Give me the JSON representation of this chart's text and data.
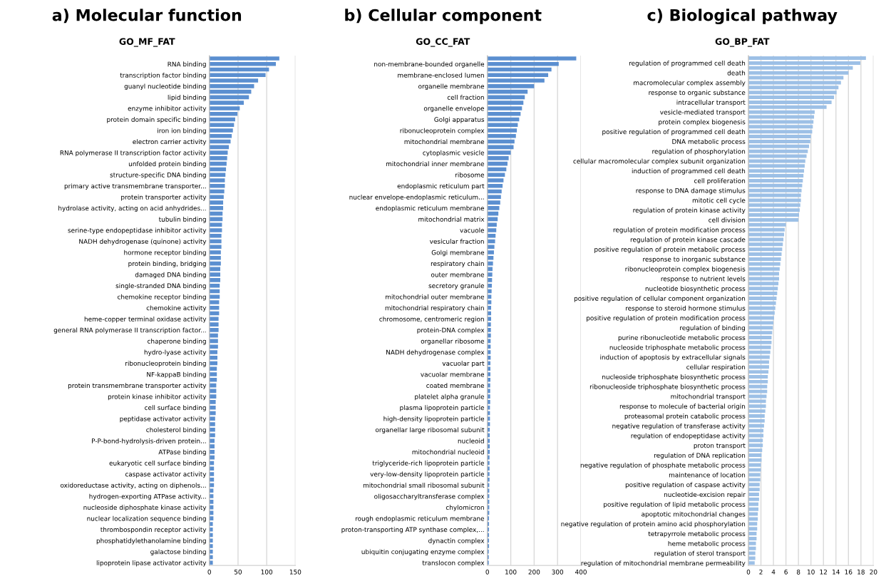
{
  "chart_data": [
    {
      "type": "bar",
      "orientation": "horizontal",
      "title": "a) Molecular function",
      "subtitle": "GO_MF_FAT",
      "color": "#5b8fd0",
      "grid": "x",
      "xlim": [
        0,
        150
      ],
      "xticks": [
        0,
        50,
        100,
        150
      ],
      "categories": [
        null,
        "RNA binding",
        null,
        "transcription factor binding",
        null,
        "guanyl nucleotide binding",
        null,
        "lipid binding",
        null,
        "enzyme inhibitor activity",
        null,
        "protein domain specific binding",
        null,
        "iron ion binding",
        null,
        "electron carrier activity",
        null,
        "RNA polymerase II transcription factor activity",
        null,
        "unfolded protein binding",
        null,
        "structure-specific DNA binding",
        null,
        "primary active transmembrane transporter...",
        null,
        "protein transporter activity",
        null,
        "hydrolase activity, acting on acid anhydrides...",
        null,
        "tubulin binding",
        null,
        "serine-type endopeptidase inhibitor activity",
        null,
        "NADH dehydrogenase (quinone) activity",
        null,
        "hormone receptor binding",
        null,
        "protein binding, bridging",
        null,
        "damaged DNA binding",
        null,
        "single-stranded DNA binding",
        null,
        "chemokine receptor binding",
        null,
        "chemokine activity",
        null,
        "heme-copper terminal oxidase activity",
        null,
        "general RNA polymerase II transcription factor...",
        null,
        "chaperone binding",
        null,
        "hydro-lyase activity",
        null,
        "ribonucleoprotein binding",
        null,
        "NF-kappaB binding",
        null,
        "protein transmembrane transporter activity",
        null,
        "protein kinase inhibitor activity",
        null,
        "cell surface binding",
        null,
        "peptidase activator activity",
        null,
        "cholesterol binding",
        null,
        "P-P-bond-hydrolysis-driven protein...",
        null,
        "ATPase binding",
        null,
        "eukaryotic cell surface binding",
        null,
        "caspase activator activity",
        null,
        "oxidoreductase activity, acting on diphenols...",
        null,
        "hydrogen-exporting ATPase activity...",
        null,
        "nucleoside diphosphate kinase activity",
        null,
        "nuclear localization sequence binding",
        null,
        "thrombospondin receptor activity",
        null,
        "phosphatidylethanolamine binding",
        null,
        "galactose binding",
        null,
        "lipoprotein lipase activator activity"
      ],
      "values": [
        122,
        116,
        104,
        98,
        85,
        78,
        73,
        69,
        60,
        53,
        49,
        45,
        43,
        41,
        39,
        37,
        34,
        32,
        31,
        30,
        29,
        28,
        27,
        27,
        26,
        25,
        24,
        24,
        23,
        23,
        22,
        22,
        21,
        21,
        21,
        20,
        20,
        20,
        19,
        19,
        19,
        18,
        18,
        18,
        17,
        17,
        17,
        16,
        16,
        16,
        15,
        15,
        15,
        14,
        14,
        14,
        13,
        13,
        13,
        12,
        12,
        12,
        11,
        11,
        11,
        10,
        10,
        10,
        10,
        9,
        9,
        9,
        9,
        8,
        8,
        8,
        8,
        8,
        7,
        7,
        7,
        7,
        7,
        7,
        6,
        6,
        6,
        6,
        6,
        6,
        6,
        6
      ]
    },
    {
      "type": "bar",
      "orientation": "horizontal",
      "title": "b) Cellular component",
      "subtitle": "GO_CC_FAT",
      "color": "#5b8fd0",
      "grid": "x",
      "xlim": [
        0,
        400
      ],
      "xticks": [
        0,
        100,
        200,
        300,
        400
      ],
      "categories": [
        null,
        "non-membrane-bounded organelle",
        null,
        "membrane-enclosed lumen",
        null,
        "organelle membrane",
        null,
        "cell fraction",
        null,
        "organelle envelope",
        null,
        "Golgi apparatus",
        null,
        "ribonucleoprotein complex",
        null,
        "mitochondrial membrane",
        null,
        "cytoplasmic vesicle",
        null,
        "mitochondrial inner membrane",
        null,
        "ribosome",
        null,
        "endoplasmic reticulum part",
        null,
        "nuclear envelope-endoplasmic reticulum...",
        null,
        "endoplasmic reticulum membrane",
        null,
        "mitochondrial matrix",
        null,
        "vacuole",
        null,
        "vesicular fraction",
        null,
        "Golgi membrane",
        null,
        "respiratory chain",
        null,
        "outer membrane",
        null,
        "secretory granule",
        null,
        "mitochondrial outer membrane",
        null,
        "mitochondrial respiratory chain",
        null,
        "chromosome, centromeric region",
        null,
        "protein-DNA complex",
        null,
        "organellar ribosome",
        null,
        "NADH dehydrogenase complex",
        null,
        "vacuolar part",
        null,
        "vacuolar membrane",
        null,
        "coated membrane",
        null,
        "platelet alpha granule",
        null,
        "plasma lipoprotein particle",
        null,
        "high-density lipoprotein particle",
        null,
        "organellar large ribosomal subunit",
        null,
        "nucleoid",
        null,
        "mitochondrial nucleoid",
        null,
        "triglyceride-rich lipoprotein particle",
        null,
        "very-low-density lipoprotein particle",
        null,
        "mitochondrial small ribosomal subunit",
        null,
        "oligosaccharyltransferase complex",
        null,
        "chylomicron",
        null,
        "rough endoplasmic reticulum membrane",
        null,
        "proton-transporting ATP synthase complex,...",
        null,
        "dynactin complex",
        null,
        "ubiquitin conjugating enzyme complex",
        null,
        "translocon complex"
      ],
      "values": [
        380,
        305,
        274,
        260,
        244,
        200,
        172,
        160,
        154,
        148,
        142,
        136,
        130,
        126,
        122,
        116,
        112,
        100,
        91,
        86,
        81,
        75,
        69,
        65,
        61,
        58,
        55,
        51,
        47,
        44,
        40,
        38,
        35,
        33,
        30,
        28,
        26,
        24,
        22,
        21,
        20,
        19,
        18,
        17,
        17,
        16,
        16,
        16,
        15,
        15,
        15,
        14,
        14,
        14,
        14,
        13,
        13,
        13,
        13,
        12,
        12,
        12,
        12,
        11,
        11,
        11,
        11,
        10,
        10,
        10,
        10,
        10,
        9,
        9,
        9,
        9,
        9,
        8,
        8,
        8,
        8,
        8,
        8,
        7,
        7,
        7,
        7,
        7,
        7,
        6,
        6,
        6
      ]
    },
    {
      "type": "bar",
      "orientation": "horizontal",
      "title": "c) Biological pathway",
      "subtitle": "GO_BP_FAT",
      "color": "#9dc0e6",
      "grid": "x",
      "xlim": [
        0,
        20
      ],
      "xticks": [
        0,
        2,
        4,
        6,
        8,
        10,
        12,
        14,
        16,
        18,
        20
      ],
      "categories": [
        null,
        "regulation of programmed cell death",
        null,
        "death",
        null,
        "macromolecular complex assembly",
        null,
        "response to organic substance",
        null,
        "intracellular transport",
        null,
        "vesicle-mediated transport",
        null,
        "protein complex biogenesis",
        null,
        "positive regulation of programmed cell death",
        null,
        "DNA metabolic process",
        null,
        "regulation of phosphorylation",
        null,
        "cellular macromolecular complex subunit organization",
        null,
        "induction of programmed cell death",
        null,
        "cell proliferation",
        null,
        "response to DNA damage stimulus",
        null,
        "mitotic cell cycle",
        null,
        "regulation of protein kinase activity",
        null,
        "cell division",
        null,
        "regulation of protein modification process",
        null,
        "regulation of protein kinase cascade",
        null,
        "positive regulation of protein metabolic process",
        null,
        "response to inorganic substance",
        null,
        "ribonucleoprotein complex biogenesis",
        null,
        "response to nutrient levels",
        null,
        "nucleotide biosynthetic process",
        null,
        "positive regulation of cellular component organization",
        null,
        "response to steroid hormone stimulus",
        null,
        "positive regulation of protein modification process",
        null,
        "regulation of binding",
        null,
        "purine ribonucleotide metabolic process",
        null,
        "nucleoside triphosphate metabolic process",
        null,
        "induction of apoptosis by extracellular signals",
        null,
        "cellular respiration",
        null,
        "nucleoside triphosphate biosynthetic process",
        null,
        "ribonucleoside triphosphate biosynthetic process",
        null,
        "mitochondrial transport",
        null,
        "response to molecule of bacterial origin",
        null,
        "proteasomal protein catabolic process",
        null,
        "negative regulation of transferase activity",
        null,
        "regulation of endopeptidase activity",
        null,
        "proton transport",
        null,
        "regulation of DNA replication",
        null,
        "negative regulation of phosphate metabolic process",
        null,
        "maintenance of location",
        null,
        "positive regulation of caspase activity",
        null,
        "nucleotide-excision repair",
        null,
        "positive regulation of lipid metabolic process",
        null,
        "apoptotic mitochondrial changes",
        null,
        "negative regulation of protein amino acid phosphorylation",
        null,
        "tetrapyrrole metabolic process",
        null,
        "heme metabolic process",
        null,
        "regulation of sterol transport",
        null,
        "regulation of mitochondrial membrane permeability"
      ],
      "values": [
        18.8,
        17.9,
        16.7,
        16.0,
        15.2,
        14.8,
        14.4,
        14.1,
        13.7,
        13.3,
        12.5,
        10.6,
        10.5,
        10.4,
        10.3,
        10.2,
        10.0,
        9.9,
        9.7,
        9.5,
        9.3,
        9.1,
        9.0,
        8.9,
        8.8,
        8.7,
        8.6,
        8.5,
        8.4,
        8.4,
        8.3,
        8.2,
        8.1,
        8.0,
        6.0,
        5.8,
        5.7,
        5.6,
        5.5,
        5.4,
        5.3,
        5.2,
        5.1,
        5.0,
        4.9,
        4.9,
        4.8,
        4.7,
        4.6,
        4.5,
        4.4,
        4.3,
        4.2,
        4.1,
        4.0,
        3.9,
        3.8,
        3.7,
        3.7,
        3.6,
        3.5,
        3.4,
        3.3,
        3.3,
        3.2,
        3.1,
        3.1,
        3.0,
        3.0,
        2.9,
        2.8,
        2.8,
        2.7,
        2.6,
        2.6,
        2.5,
        2.4,
        2.4,
        2.3,
        2.3,
        2.2,
        2.1,
        2.1,
        2.0,
        2.0,
        1.9,
        1.9,
        1.8,
        1.8,
        1.7,
        1.7,
        1.6,
        1.6,
        1.5,
        1.5,
        1.4,
        1.4,
        1.3,
        1.3,
        1.2,
        1.2,
        1.1,
        1.1,
        1.0
      ]
    }
  ]
}
